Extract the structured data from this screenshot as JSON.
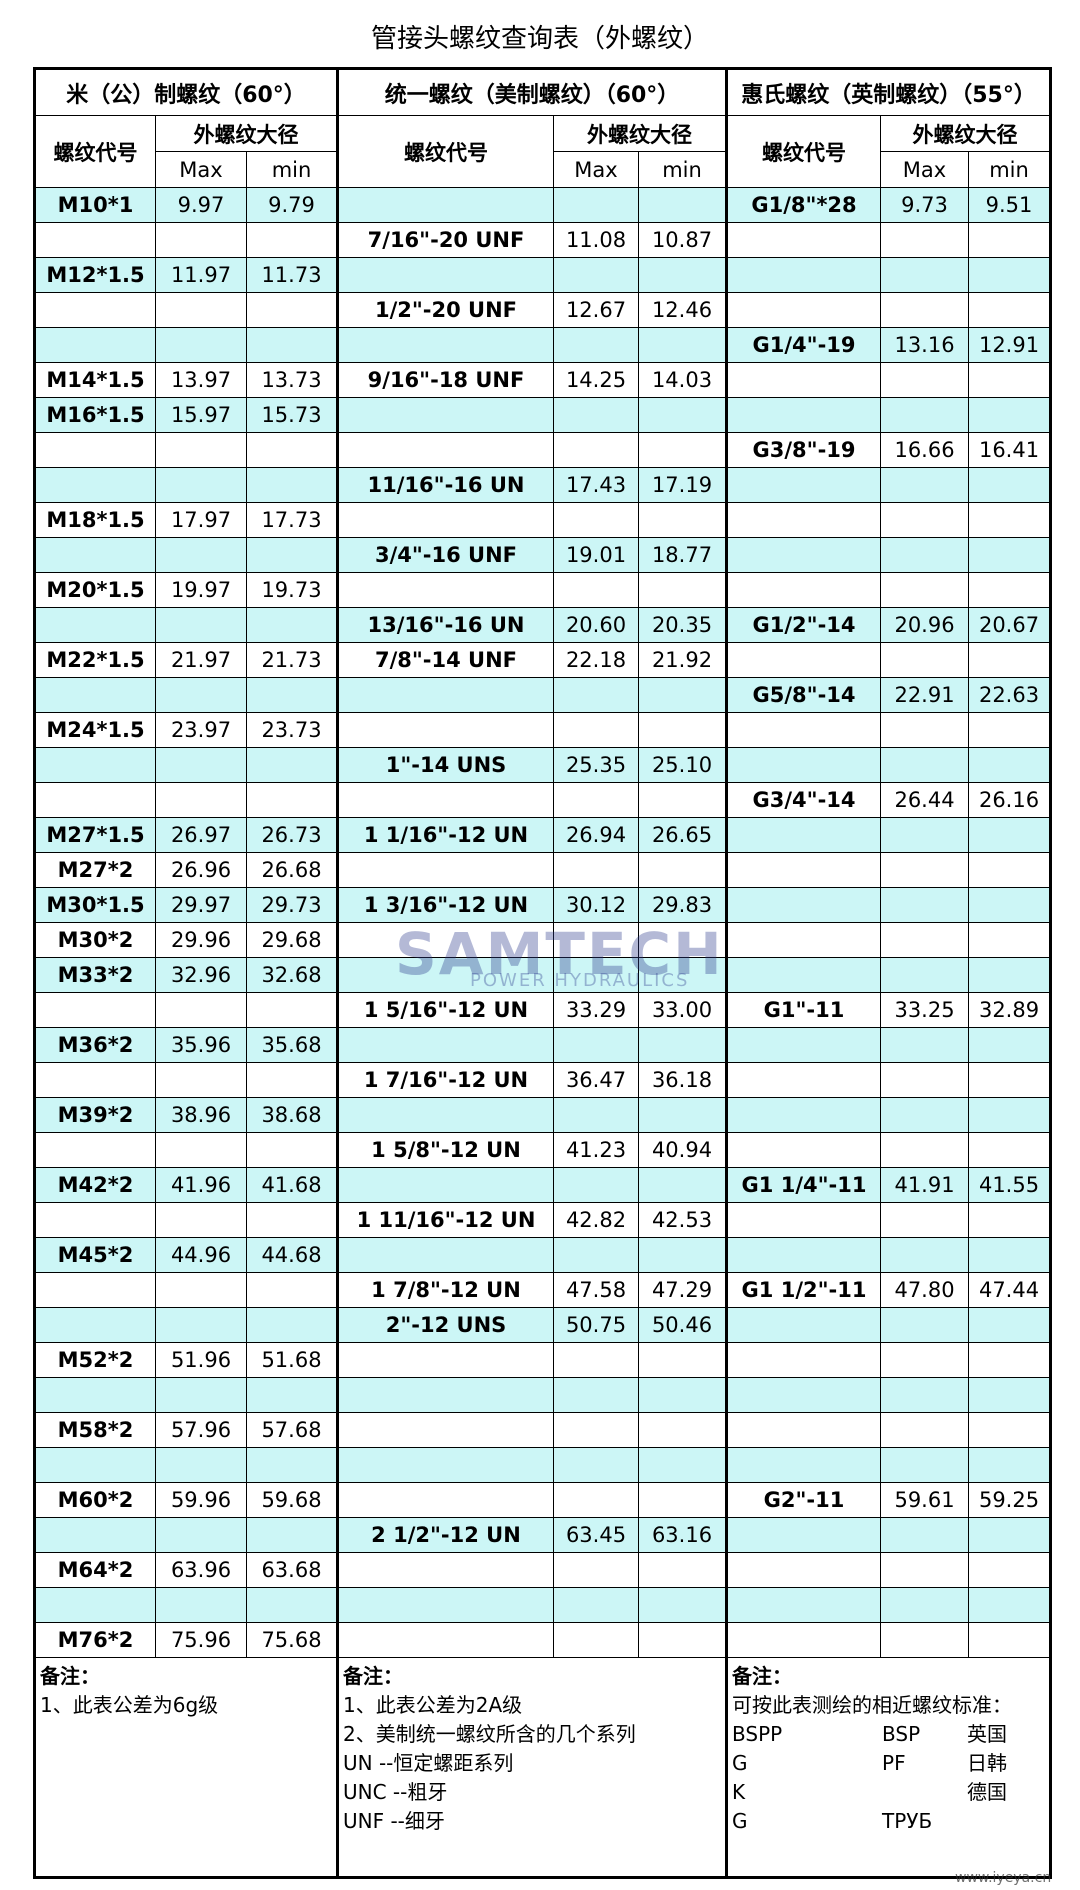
{
  "header": {
    "title": "管接头螺纹查询表（外螺纹）"
  },
  "table": {
    "groups": [
      "米（公）制螺纹（60°）",
      "统一螺纹（美制螺纹）（60°）",
      "惠氏螺纹（英制螺纹）（55°）"
    ],
    "code_label": "螺纹代号",
    "dia_label": "外螺纹大径",
    "max_label": "Max",
    "min_label": "min",
    "rows": [
      [
        "M10*1",
        "9.97",
        "9.79",
        null,
        null,
        null,
        "G1/8\"*28",
        "9.73",
        "9.51"
      ],
      [
        null,
        null,
        null,
        "7/16\"-20 UNF",
        "11.08",
        "10.87",
        null,
        null,
        null
      ],
      [
        "M12*1.5",
        "11.97",
        "11.73",
        null,
        null,
        null,
        null,
        null,
        null
      ],
      [
        null,
        null,
        null,
        "1/2\"-20 UNF",
        "12.67",
        "12.46",
        null,
        null,
        null
      ],
      [
        null,
        null,
        null,
        null,
        null,
        null,
        "G1/4\"-19",
        "13.16",
        "12.91"
      ],
      [
        "M14*1.5",
        "13.97",
        "13.73",
        "9/16\"-18 UNF",
        "14.25",
        "14.03",
        null,
        null,
        null
      ],
      [
        "M16*1.5",
        "15.97",
        "15.73",
        null,
        null,
        null,
        null,
        null,
        null
      ],
      [
        null,
        null,
        null,
        null,
        null,
        null,
        "G3/8\"-19",
        "16.66",
        "16.41"
      ],
      [
        null,
        null,
        null,
        "11/16\"-16 UN",
        "17.43",
        "17.19",
        null,
        null,
        null
      ],
      [
        "M18*1.5",
        "17.97",
        "17.73",
        null,
        null,
        null,
        null,
        null,
        null
      ],
      [
        null,
        null,
        null,
        "3/4\"-16 UNF",
        "19.01",
        "18.77",
        null,
        null,
        null
      ],
      [
        "M20*1.5",
        "19.97",
        "19.73",
        null,
        null,
        null,
        null,
        null,
        null
      ],
      [
        null,
        null,
        null,
        "13/16\"-16 UN",
        "20.60",
        "20.35",
        "G1/2\"-14",
        "20.96",
        "20.67"
      ],
      [
        "M22*1.5",
        "21.97",
        "21.73",
        "7/8\"-14 UNF",
        "22.18",
        "21.92",
        null,
        null,
        null
      ],
      [
        null,
        null,
        null,
        null,
        null,
        null,
        "G5/8\"-14",
        "22.91",
        "22.63"
      ],
      [
        "M24*1.5",
        "23.97",
        "23.73",
        null,
        null,
        null,
        null,
        null,
        null
      ],
      [
        null,
        null,
        null,
        "1\"-14 UNS",
        "25.35",
        "25.10",
        null,
        null,
        null
      ],
      [
        null,
        null,
        null,
        null,
        null,
        null,
        "G3/4\"-14",
        "26.44",
        "26.16"
      ],
      [
        "M27*1.5",
        "26.97",
        "26.73",
        "1 1/16\"-12 UN",
        "26.94",
        "26.65",
        null,
        null,
        null
      ],
      [
        "M27*2",
        "26.96",
        "26.68",
        null,
        null,
        null,
        null,
        null,
        null
      ],
      [
        "M30*1.5",
        "29.97",
        "29.73",
        "1 3/16\"-12 UN",
        "30.12",
        "29.83",
        null,
        null,
        null
      ],
      [
        "M30*2",
        "29.96",
        "29.68",
        null,
        null,
        null,
        null,
        null,
        null
      ],
      [
        "M33*2",
        "32.96",
        "32.68",
        null,
        null,
        null,
        null,
        null,
        null
      ],
      [
        null,
        null,
        null,
        "1 5/16\"-12 UN",
        "33.29",
        "33.00",
        "G1\"-11",
        "33.25",
        "32.89"
      ],
      [
        "M36*2",
        "35.96",
        "35.68",
        null,
        null,
        null,
        null,
        null,
        null
      ],
      [
        null,
        null,
        null,
        "1 7/16\"-12 UN",
        "36.47",
        "36.18",
        null,
        null,
        null
      ],
      [
        "M39*2",
        "38.96",
        "38.68",
        null,
        null,
        null,
        null,
        null,
        null
      ],
      [
        null,
        null,
        null,
        "1 5/8\"-12 UN",
        "41.23",
        "40.94",
        null,
        null,
        null
      ],
      [
        "M42*2",
        "41.96",
        "41.68",
        null,
        null,
        null,
        "G1 1/4\"-11",
        "41.91",
        "41.55"
      ],
      [
        null,
        null,
        null,
        "1 11/16\"-12 UN",
        "42.82",
        "42.53",
        null,
        null,
        null
      ],
      [
        "M45*2",
        "44.96",
        "44.68",
        null,
        null,
        null,
        null,
        null,
        null
      ],
      [
        null,
        null,
        null,
        "1 7/8\"-12 UN",
        "47.58",
        "47.29",
        "G1 1/2\"-11",
        "47.80",
        "47.44"
      ],
      [
        null,
        null,
        null,
        "2\"-12 UNS",
        "50.75",
        "50.46",
        null,
        null,
        null
      ],
      [
        "M52*2",
        "51.96",
        "51.68",
        null,
        null,
        null,
        null,
        null,
        null
      ],
      [
        null,
        null,
        null,
        null,
        null,
        null,
        null,
        null,
        null
      ],
      [
        "M58*2",
        "57.96",
        "57.68",
        null,
        null,
        null,
        null,
        null,
        null
      ],
      [
        null,
        null,
        null,
        null,
        null,
        null,
        null,
        null,
        null
      ],
      [
        "M60*2",
        "59.96",
        "59.68",
        null,
        null,
        null,
        "G2\"-11",
        "59.61",
        "59.25"
      ],
      [
        null,
        null,
        null,
        "2 1/2\"-12 UN",
        "63.45",
        "63.16",
        null,
        null,
        null
      ],
      [
        "M64*2",
        "63.96",
        "63.68",
        null,
        null,
        null,
        null,
        null,
        null
      ],
      [
        null,
        null,
        null,
        null,
        null,
        null,
        null,
        null,
        null
      ],
      [
        "M76*2",
        "75.96",
        "75.68",
        null,
        null,
        null,
        null,
        null,
        null
      ]
    ]
  },
  "notes": {
    "label": "备注：",
    "metric": [
      "1、此表公差为6g级"
    ],
    "unified": [
      "1、此表公差为2A级",
      "2、美制统一螺纹所含的几个系列",
      "UN  --恒定螺距系列",
      "UNC --粗牙",
      "UNF  --细牙"
    ],
    "whitworth_intro": "可按此表测绘的相近螺纹标准：",
    "standards": [
      [
        "BSPP",
        "BSP",
        "英国"
      ],
      [
        "G",
        "PF",
        "日韩"
      ],
      [
        "K",
        null,
        "德国"
      ],
      [
        "G",
        "ТРУБ",
        null
      ]
    ]
  },
  "watermark": {
    "brand": "SAMTECH",
    "tagline": "POWER HYDRAULICS",
    "site": "www.iyeya.cn"
  }
}
